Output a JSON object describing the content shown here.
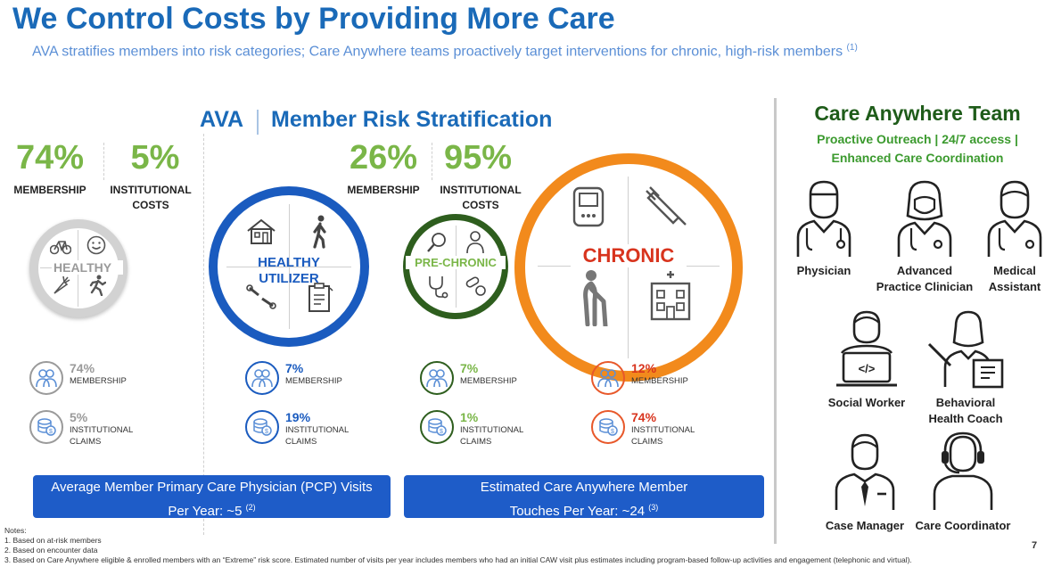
{
  "header": {
    "title": "We Control Costs by Providing More Care",
    "subtitle": "AVA stratifies members into risk categories; Care Anywhere teams proactively target interventions for chronic, high-risk members",
    "subtitle_ref": "(1)"
  },
  "section": {
    "ava": "AVA",
    "title": "Member Risk Stratification"
  },
  "top_stats": {
    "left": {
      "membership_pct": "74%",
      "membership_label": "MEMBERSHIP",
      "costs_pct": "5%",
      "costs_label_1": "INSTITUTIONAL",
      "costs_label_2": "COSTS"
    },
    "right": {
      "membership_pct": "26%",
      "membership_label": "MEMBERSHIP",
      "costs_pct": "95%",
      "costs_label_1": "INSTITUTIONAL",
      "costs_label_2": "COSTS"
    }
  },
  "circles": {
    "healthy": "HEALTHY",
    "healthy_utilizer_1": "HEALTHY",
    "healthy_utilizer_2": "UTILIZER",
    "pre_chronic": "PRE-CHRONIC",
    "chronic": "CHRONIC"
  },
  "segments": [
    {
      "membership": "74%",
      "membership_label": "MEMBERSHIP",
      "claims": "5%",
      "claims_label_1": "INSTITUTIONAL",
      "claims_label_2": "CLAIMS"
    },
    {
      "membership": "7%",
      "membership_label": "MEMBERSHIP",
      "claims": "19%",
      "claims_label_1": "INSTITUTIONAL",
      "claims_label_2": "CLAIMS"
    },
    {
      "membership": "7%",
      "membership_label": "MEMBERSHIP",
      "claims": "1%",
      "claims_label_1": "INSTITUTIONAL",
      "claims_label_2": "CLAIMS"
    },
    {
      "membership": "12%",
      "membership_label": "MEMBERSHIP",
      "claims": "74%",
      "claims_label_1": "INSTITUTIONAL",
      "claims_label_2": "CLAIMS"
    }
  ],
  "boxes": {
    "pcp_line1": "Average Member Primary Care Physician (PCP) Visits",
    "pcp_line2": "Per Year:  ~5",
    "pcp_ref": "(2)",
    "caw_line1": "Estimated Care Anywhere Member",
    "caw_line2": "Touches Per Year:  ~24",
    "caw_ref": "(3)"
  },
  "team": {
    "title": "Care Anywhere Team",
    "sub_1": "Proactive Outreach | 24/7 access |",
    "sub_2": "Enhanced Care Coordination",
    "roles": [
      {
        "line1": "Physician",
        "line2": ""
      },
      {
        "line1": "Advanced",
        "line2": "Practice Clinician"
      },
      {
        "line1": "Medical",
        "line2": "Assistant"
      },
      {
        "line1": "Social Worker",
        "line2": ""
      },
      {
        "line1": "Behavioral",
        "line2": "Health Coach"
      },
      {
        "line1": "Case Manager",
        "line2": ""
      },
      {
        "line1": "Care Coordinator",
        "line2": ""
      }
    ]
  },
  "notes": {
    "heading": "Notes:",
    "n1": "1. Based on at-risk members",
    "n2": "2. Based on encounter data",
    "n3": "3. Based on Care Anywhere eligible & enrolled members with an “Extreme” risk score. Estimated number of visits per year includes members who had an initial CAW visit plus estimates including program-based follow-up activities and engagement (telephonic and virtual)."
  },
  "page_number": "7",
  "colors": {
    "blue": "#1a6ab8",
    "green": "#7ab648",
    "dark_green": "#2e5e1e",
    "orange": "#f28a1c",
    "red": "#d8341e",
    "gray": "#9a9a9a"
  }
}
